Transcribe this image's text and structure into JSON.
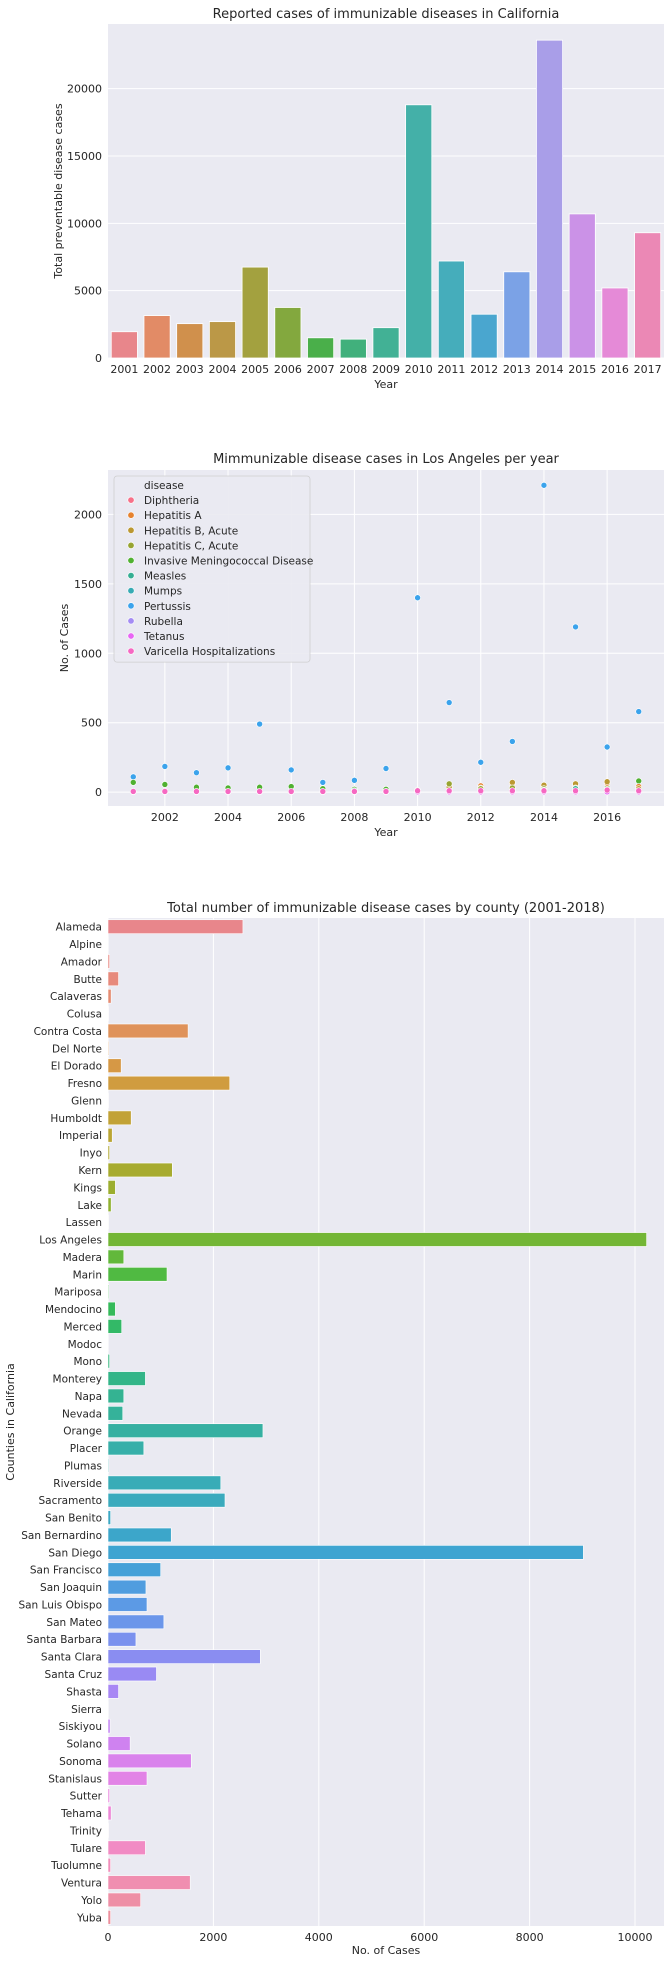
{
  "chart_data": [
    {
      "type": "bar",
      "title": "Reported cases of immunizable diseases in California",
      "xlabel": "Year",
      "ylabel": "Total preventable disease cases",
      "grid": true,
      "ylim": [
        0,
        24800
      ],
      "yticks": [
        0,
        5000,
        10000,
        15000,
        20000
      ],
      "categories": [
        "2001",
        "2002",
        "2003",
        "2004",
        "2005",
        "2006",
        "2007",
        "2008",
        "2009",
        "2010",
        "2011",
        "2012",
        "2013",
        "2014",
        "2015",
        "2016",
        "2017"
      ],
      "values": [
        1950,
        3150,
        2550,
        2700,
        6750,
        3750,
        1500,
        1400,
        2250,
        18800,
        7200,
        3250,
        6400,
        23600,
        10700,
        5200,
        9300
      ],
      "colors": [
        "#e8868b",
        "#e28b66",
        "#d0904c",
        "#bb9847",
        "#a3a13f",
        "#83a83e",
        "#4aaf4a",
        "#41b07c",
        "#42b195",
        "#44b0a8",
        "#45adbb",
        "#4aa6cf",
        "#7ba2e6",
        "#a99ee8",
        "#cb92e7",
        "#e58ad7",
        "#eb88b5"
      ]
    },
    {
      "type": "scatter",
      "title": "Mimmunizable disease cases in Los Angeles per year",
      "xlabel": "Year",
      "ylabel": "No. of Cases",
      "grid": true,
      "xlim": [
        2000.2,
        2017.8
      ],
      "ylim": [
        -100,
        2320
      ],
      "xticks": [
        2002,
        2004,
        2006,
        2008,
        2010,
        2012,
        2014,
        2016
      ],
      "yticks": [
        0,
        500,
        1000,
        1500,
        2000
      ],
      "legend": {
        "title": "disease",
        "position": "upper-left",
        "entries": [
          {
            "name": "Diphtheria",
            "color": "#f77189"
          },
          {
            "name": "Hepatitis A",
            "color": "#e6822e"
          },
          {
            "name": "Hepatitis B, Acute",
            "color": "#bb9832"
          },
          {
            "name": "Hepatitis C, Acute",
            "color": "#97a431"
          },
          {
            "name": "Invasive Meningococcal Disease",
            "color": "#50b131"
          },
          {
            "name": "Measles",
            "color": "#35ae93"
          },
          {
            "name": "Mumps",
            "color": "#37abb4"
          },
          {
            "name": "Pertussis",
            "color": "#3ba3ec"
          },
          {
            "name": "Rubella",
            "color": "#a48cf4"
          },
          {
            "name": "Tetanus",
            "color": "#e866f4"
          },
          {
            "name": "Varicella Hospitalizations",
            "color": "#f668c2"
          }
        ]
      },
      "series": [
        {
          "name": "Pertussis",
          "color": "#3ba3ec",
          "x": [
            2001,
            2002,
            2003,
            2004,
            2005,
            2006,
            2007,
            2008,
            2009,
            2010,
            2011,
            2012,
            2013,
            2014,
            2015,
            2016,
            2017
          ],
          "y": [
            110,
            185,
            140,
            175,
            490,
            160,
            70,
            85,
            170,
            1400,
            645,
            215,
            365,
            2210,
            1190,
            325,
            580
          ]
        },
        {
          "name": "Invasive Meningococcal Disease",
          "color": "#50b131",
          "x": [
            2001,
            2002,
            2003,
            2004,
            2005,
            2006,
            2007,
            2008,
            2009,
            2010,
            2011,
            2012,
            2013,
            2014,
            2015,
            2016,
            2017
          ],
          "y": [
            70,
            55,
            35,
            30,
            35,
            40,
            25,
            20,
            20,
            15,
            25,
            25,
            20,
            20,
            25,
            30,
            80
          ]
        },
        {
          "name": "Hepatitis A",
          "color": "#e6822e",
          "x": [
            2011,
            2012,
            2013,
            2014,
            2015,
            2016,
            2017
          ],
          "y": [
            50,
            45,
            60,
            45,
            40,
            65,
            40
          ]
        },
        {
          "name": "Hepatitis B, Acute",
          "color": "#bb9832",
          "x": [
            2011,
            2012,
            2013,
            2014,
            2015,
            2016,
            2017
          ],
          "y": [
            35,
            30,
            70,
            50,
            60,
            75,
            25
          ]
        },
        {
          "name": "Hepatitis C, Acute",
          "color": "#97a431",
          "x": [
            2011,
            2012,
            2013,
            2014,
            2015,
            2016,
            2017
          ],
          "y": [
            60,
            25,
            30,
            25,
            30,
            20,
            10
          ]
        },
        {
          "name": "Measles",
          "color": "#35ae93",
          "x": [
            2008,
            2009,
            2011,
            2013,
            2014,
            2015
          ],
          "y": [
            10,
            5,
            10,
            5,
            15,
            25
          ]
        },
        {
          "name": "Tetanus",
          "color": "#e866f4",
          "x": [
            2001,
            2002,
            2003,
            2004,
            2005,
            2006,
            2007,
            2008,
            2009,
            2010,
            2011,
            2012,
            2013,
            2014,
            2015,
            2016,
            2017
          ],
          "y": [
            2,
            2,
            2,
            2,
            2,
            2,
            2,
            2,
            2,
            2,
            2,
            2,
            2,
            2,
            2,
            2,
            2
          ]
        },
        {
          "name": "Varicella Hospitalizations",
          "color": "#f668c2",
          "x": [
            2001,
            2002,
            2003,
            2004,
            2005,
            2006,
            2007,
            2008,
            2009,
            2010,
            2011,
            2012,
            2013,
            2014,
            2015,
            2016,
            2017
          ],
          "y": [
            5,
            5,
            5,
            5,
            5,
            5,
            5,
            5,
            5,
            10,
            10,
            10,
            10,
            10,
            10,
            15,
            10
          ]
        }
      ]
    },
    {
      "type": "bar",
      "orientation": "horizontal",
      "title": "Total number of immunizable disease cases by county (2001-2018)",
      "xlabel": "No. of Cases",
      "ylabel": "Counties in California",
      "grid": true,
      "xlim": [
        0,
        10550
      ],
      "xticks": [
        0,
        2000,
        4000,
        6000,
        8000,
        10000
      ],
      "categories": [
        "Alameda",
        "Alpine",
        "Amador",
        "Butte",
        "Calaveras",
        "Colusa",
        "Contra Costa",
        "Del Norte",
        "El Dorado",
        "Fresno",
        "Glenn",
        "Humboldt",
        "Imperial",
        "Inyo",
        "Kern",
        "Kings",
        "Lake",
        "Lassen",
        "Los Angeles",
        "Madera",
        "Marin",
        "Mariposa",
        "Mendocino",
        "Merced",
        "Modoc",
        "Mono",
        "Monterey",
        "Napa",
        "Nevada",
        "Orange",
        "Placer",
        "Plumas",
        "Riverside",
        "Sacramento",
        "San Benito",
        "San Bernardino",
        "San Diego",
        "San Francisco",
        "San Joaquin",
        "San Luis Obispo",
        "San Mateo",
        "Santa Barbara",
        "Santa Clara",
        "Santa Cruz",
        "Shasta",
        "Sierra",
        "Siskiyou",
        "Solano",
        "Sonoma",
        "Stanislaus",
        "Sutter",
        "Tehama",
        "Trinity",
        "Tulare",
        "Tuolumne",
        "Ventura",
        "Yolo",
        "Yuba"
      ],
      "values": [
        2560,
        5,
        30,
        200,
        60,
        10,
        1520,
        15,
        250,
        2310,
        10,
        440,
        80,
        30,
        1220,
        140,
        60,
        10,
        10220,
        300,
        1120,
        15,
        140,
        260,
        5,
        30,
        710,
        300,
        280,
        2940,
        680,
        15,
        2140,
        2220,
        50,
        1200,
        9020,
        1000,
        720,
        740,
        1060,
        530,
        2890,
        920,
        200,
        5,
        40,
        420,
        1580,
        740,
        30,
        60,
        10,
        710,
        50,
        1560,
        620,
        50
      ],
      "colors": [
        "#e8868b",
        "#e88787",
        "#e88883",
        "#e78a7c",
        "#e58c72",
        "#e38e66",
        "#df925a",
        "#db9550",
        "#d69845",
        "#d09c3f",
        "#c99f3a",
        "#c2a236",
        "#baa533",
        "#b1a831",
        "#a7ab2f",
        "#9cae2f",
        "#90b130",
        "#82b432",
        "#73b635",
        "#62b83b",
        "#50ba42",
        "#3dba4c",
        "#35ba5a",
        "#33b967",
        "#33b873",
        "#33b67e",
        "#33b588",
        "#34b392",
        "#35b29a",
        "#36b0a2",
        "#37afa9",
        "#38adb0",
        "#39acb7",
        "#3aaabd",
        "#3ba8c4",
        "#3ca6ca",
        "#3ea4d1",
        "#45a1d8",
        "#509ddf",
        "#5c9ae5",
        "#6b96ea",
        "#7b91ee",
        "#8a8df1",
        "#998af3",
        "#a887f4",
        "#b685f4",
        "#c383f3",
        "#cf82f0",
        "#d982ec",
        "#e283e6",
        "#e985df",
        "#ed87d7",
        "#f089ce",
        "#f18bc4",
        "#f18dba",
        "#f08eb0",
        "#ee8fa6",
        "#ec8f9c"
      ]
    }
  ]
}
